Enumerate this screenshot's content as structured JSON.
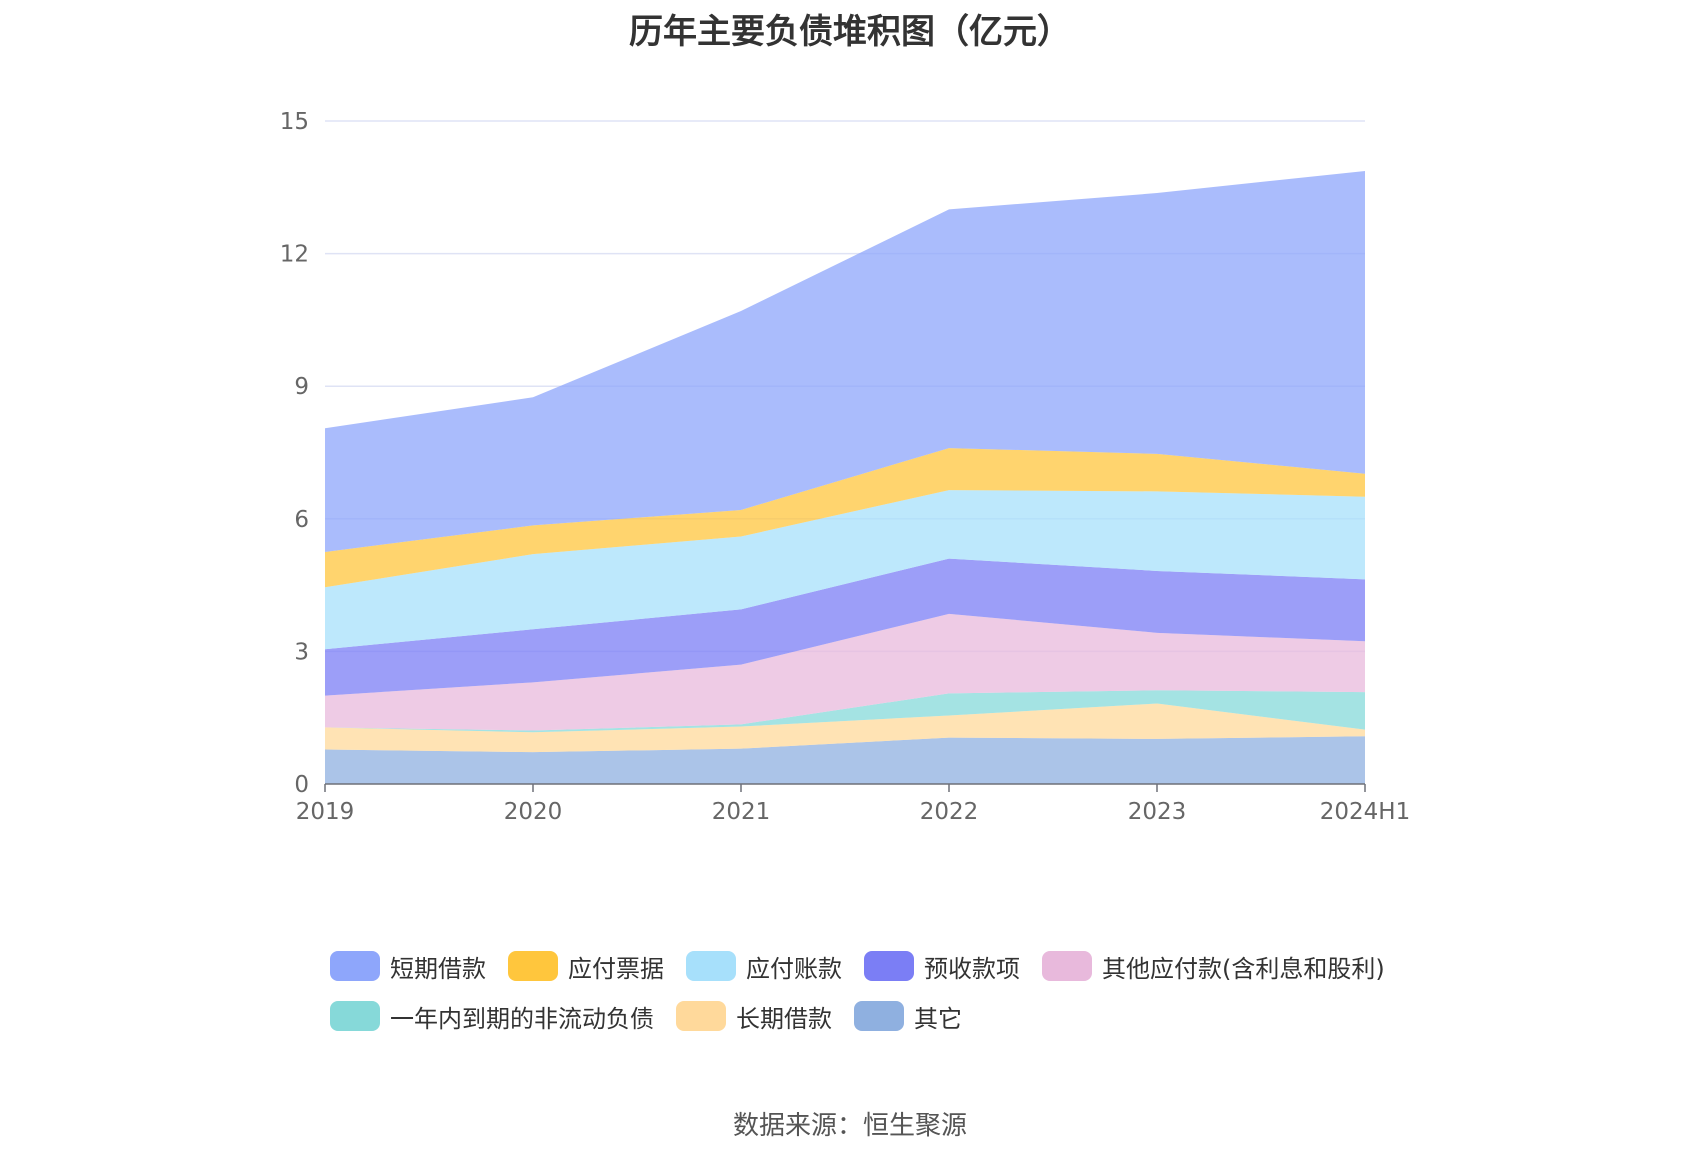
{
  "chart_data": {
    "type": "area",
    "title": "历年主要负债堆积图（亿元）",
    "categories": [
      "2019",
      "2020",
      "2021",
      "2022",
      "2023",
      "2024H1"
    ],
    "y_ticks": [
      "0",
      "3",
      "6",
      "9",
      "12",
      "15"
    ],
    "ylim": [
      0,
      15
    ],
    "grid": true,
    "legend_position": "bottom",
    "series": [
      {
        "name": "其它",
        "color": "#8fb0e0",
        "values": [
          0.78,
          0.72,
          0.8,
          1.05,
          1.02,
          1.08
        ]
      },
      {
        "name": "长期借款",
        "color": "#ffd99b",
        "values": [
          0.5,
          0.45,
          0.5,
          0.5,
          0.8,
          0.15
        ]
      },
      {
        "name": "一年内到期的非流动负债",
        "color": "#86d9d9",
        "values": [
          0.0,
          0.04,
          0.05,
          0.5,
          0.3,
          0.85
        ]
      },
      {
        "name": "其他应付款(含利息和股利)",
        "color": "#e8b9dc",
        "values": [
          0.72,
          1.09,
          1.35,
          1.8,
          1.3,
          1.15
        ]
      },
      {
        "name": "预收款项",
        "color": "#7b7ef5",
        "values": [
          1.05,
          1.2,
          1.25,
          1.25,
          1.4,
          1.4
        ]
      },
      {
        "name": "应付账款",
        "color": "#a7e0fb",
        "values": [
          1.4,
          1.7,
          1.65,
          1.55,
          1.8,
          1.87
        ]
      },
      {
        "name": "应付票据",
        "color": "#ffc63d",
        "values": [
          0.8,
          0.65,
          0.6,
          0.95,
          0.85,
          0.52
        ]
      },
      {
        "name": "短期借款",
        "color": "#8ea6fb",
        "values": [
          2.8,
          2.9,
          4.5,
          5.4,
          5.9,
          6.85
        ]
      }
    ]
  },
  "legend_order": [
    "短期借款",
    "应付票据",
    "应付账款",
    "预收款项",
    "其他应付款(含利息和股利)",
    "一年内到期的非流动负债",
    "长期借款",
    "其它"
  ],
  "source": "数据来源：恒生聚源"
}
